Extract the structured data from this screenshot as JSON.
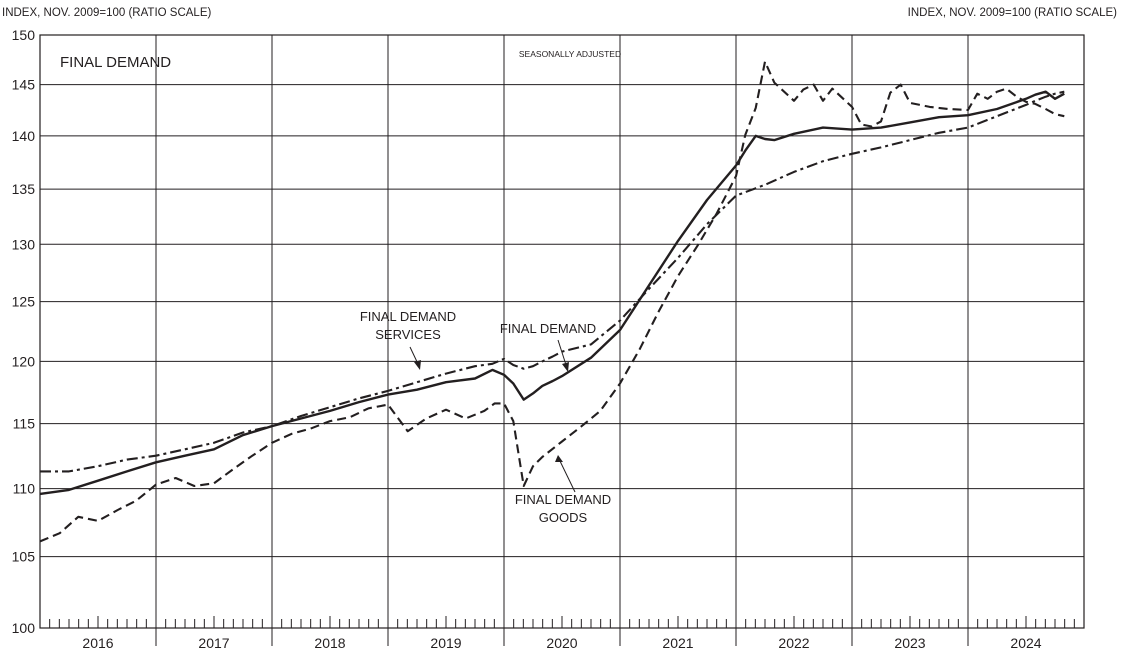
{
  "chart_data": {
    "type": "line",
    "title": "FINAL DEMAND",
    "subtitle": "SEASONALLY ADJUSTED",
    "ylabel_left": "INDEX, NOV. 2009=100  (RATIO SCALE)",
    "ylabel_right": "INDEX, NOV. 2009=100  (RATIO SCALE)",
    "yscale": "log",
    "ylim": [
      100,
      150
    ],
    "yticks": [
      "100",
      "105",
      "110",
      "115",
      "120",
      "125",
      "130",
      "135",
      "140",
      "145",
      "150"
    ],
    "xlim": [
      2016.0,
      2025.0
    ],
    "x_categories": [
      "2016",
      "2017",
      "2018",
      "2019",
      "2020",
      "2021",
      "2022",
      "2023",
      "2024"
    ],
    "grid": true,
    "annotations": [
      {
        "text": "FINAL DEMAND",
        "series": "Final demand"
      },
      {
        "text": "FINAL DEMAND",
        "text2": "SERVICES",
        "series": "Final demand services"
      },
      {
        "text": "FINAL DEMAND",
        "text2": "GOODS",
        "series": "Final demand goods"
      }
    ],
    "series": [
      {
        "name": "Final demand",
        "style": "solid",
        "x": [
          2016.0,
          2016.25,
          2016.5,
          2016.75,
          2017.0,
          2017.25,
          2017.5,
          2017.75,
          2018.0,
          2018.25,
          2018.5,
          2018.75,
          2019.0,
          2019.25,
          2019.5,
          2019.75,
          2019.9,
          2020.0,
          2020.08,
          2020.17,
          2020.25,
          2020.33,
          2020.42,
          2020.5,
          2020.75,
          2021.0,
          2021.25,
          2021.5,
          2021.75,
          2022.0,
          2022.08,
          2022.17,
          2022.25,
          2022.33,
          2022.5,
          2022.75,
          2023.0,
          2023.25,
          2023.5,
          2023.75,
          2024.0,
          2024.25,
          2024.5,
          2024.58,
          2024.67,
          2024.75,
          2024.83
        ],
        "values": [
          109.6,
          109.9,
          110.6,
          111.3,
          112.0,
          112.5,
          113.0,
          114.1,
          114.8,
          115.4,
          116.0,
          116.7,
          117.3,
          117.7,
          118.3,
          118.6,
          119.3,
          118.9,
          118.2,
          116.9,
          117.4,
          118.0,
          118.4,
          118.8,
          120.3,
          122.6,
          126.4,
          130.3,
          134.0,
          137.2,
          138.6,
          140.0,
          139.7,
          139.6,
          140.2,
          140.8,
          140.6,
          140.8,
          141.3,
          141.8,
          142.0,
          142.6,
          143.6,
          144.0,
          144.3,
          143.6,
          144.1
        ]
      },
      {
        "name": "Final demand services",
        "style": "dash-dot",
        "x": [
          2016.0,
          2016.25,
          2016.5,
          2016.75,
          2017.0,
          2017.25,
          2017.5,
          2017.75,
          2018.0,
          2018.25,
          2018.5,
          2018.75,
          2019.0,
          2019.25,
          2019.5,
          2019.75,
          2019.9,
          2020.0,
          2020.08,
          2020.17,
          2020.25,
          2020.33,
          2020.42,
          2020.5,
          2020.75,
          2021.0,
          2021.25,
          2021.5,
          2021.75,
          2022.0,
          2022.25,
          2022.5,
          2022.75,
          2023.0,
          2023.25,
          2023.5,
          2023.75,
          2024.0,
          2024.25,
          2024.5,
          2024.58,
          2024.67,
          2024.75,
          2024.83
        ],
        "values": [
          111.3,
          111.3,
          111.7,
          112.2,
          112.5,
          113.0,
          113.5,
          114.3,
          114.8,
          115.6,
          116.3,
          117.0,
          117.6,
          118.3,
          119.0,
          119.6,
          119.8,
          120.2,
          119.7,
          119.4,
          119.6,
          120.0,
          120.4,
          120.8,
          121.4,
          123.4,
          126.1,
          128.8,
          131.8,
          134.4,
          135.4,
          136.6,
          137.6,
          138.3,
          138.9,
          139.6,
          140.3,
          140.8,
          141.9,
          143.0,
          143.4,
          143.8,
          144.1,
          144.3
        ]
      },
      {
        "name": "Final demand goods",
        "style": "dashed",
        "x": [
          2016.0,
          2016.17,
          2016.33,
          2016.5,
          2016.67,
          2016.83,
          2017.0,
          2017.17,
          2017.33,
          2017.5,
          2017.67,
          2017.83,
          2018.0,
          2018.17,
          2018.33,
          2018.5,
          2018.67,
          2018.83,
          2019.0,
          2019.17,
          2019.33,
          2019.5,
          2019.67,
          2019.83,
          2019.92,
          2020.0,
          2020.08,
          2020.17,
          2020.25,
          2020.33,
          2020.5,
          2020.67,
          2020.83,
          2021.0,
          2021.17,
          2021.33,
          2021.5,
          2021.67,
          2021.83,
          2022.0,
          2022.08,
          2022.17,
          2022.25,
          2022.33,
          2022.5,
          2022.58,
          2022.67,
          2022.75,
          2022.83,
          2023.0,
          2023.08,
          2023.17,
          2023.25,
          2023.33,
          2023.42,
          2023.5,
          2023.67,
          2023.83,
          2024.0,
          2024.08,
          2024.17,
          2024.25,
          2024.33,
          2024.42,
          2024.5,
          2024.58,
          2024.67,
          2024.75,
          2024.83
        ],
        "values": [
          106.1,
          106.7,
          107.9,
          107.6,
          108.4,
          109.1,
          110.3,
          110.8,
          110.2,
          110.4,
          111.5,
          112.5,
          113.5,
          114.2,
          114.6,
          115.2,
          115.5,
          116.2,
          116.5,
          114.4,
          115.4,
          116.1,
          115.4,
          116.0,
          116.6,
          116.6,
          115.2,
          110.2,
          111.7,
          112.4,
          113.6,
          114.8,
          116.0,
          118.2,
          121.0,
          124.1,
          127.2,
          129.9,
          132.7,
          136.2,
          140.1,
          142.7,
          147.3,
          145.2,
          143.4,
          144.5,
          145.0,
          143.4,
          144.6,
          142.8,
          141.1,
          140.9,
          141.4,
          144.2,
          145.0,
          143.2,
          142.8,
          142.6,
          142.5,
          144.1,
          143.6,
          144.3,
          144.6,
          143.8,
          143.3,
          143.1,
          142.6,
          142.1,
          141.9
        ]
      }
    ]
  }
}
